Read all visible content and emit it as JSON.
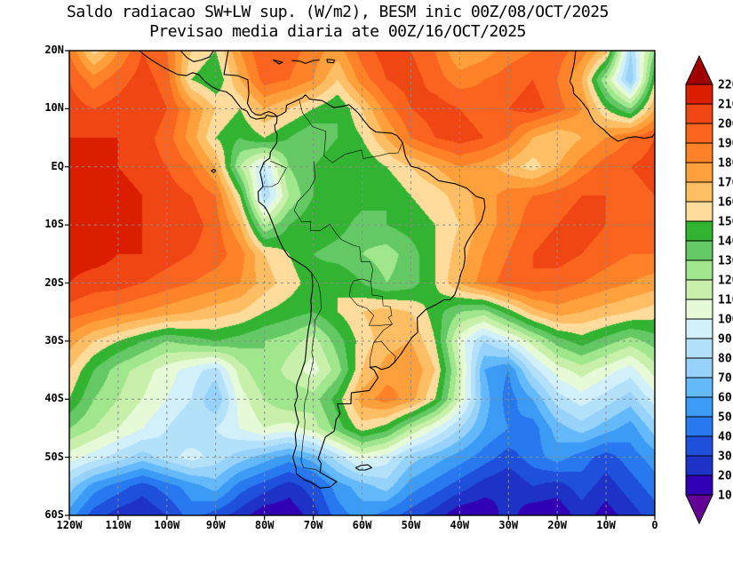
{
  "chart_data": {
    "type": "heatmap",
    "title": "Saldo radiacao SW+LW sup. (W/m2), BESM inic 00Z/08/OCT/2025",
    "subtitle": "Previsao media diaria ate 00Z/16/OCT/2025",
    "units": "W/m2",
    "x_ticks": [
      "120W",
      "110W",
      "100W",
      "90W",
      "80W",
      "70W",
      "60W",
      "50W",
      "40W",
      "30W",
      "20W",
      "10W",
      "0"
    ],
    "y_ticks": [
      "20N",
      "10N",
      "EQ",
      "10S",
      "20S",
      "30S",
      "40S",
      "50S",
      "60S"
    ],
    "lon_range": [
      -120,
      0
    ],
    "lat_range": [
      -60,
      20
    ],
    "grid_on": true,
    "legend_position": "right",
    "levels": [
      10,
      20,
      30,
      40,
      50,
      60,
      70,
      80,
      90,
      100,
      110,
      120,
      130,
      140,
      150,
      160,
      170,
      180,
      190,
      200,
      210,
      220
    ],
    "colorbar_labels": [
      "220",
      "210",
      "200",
      "190",
      "180",
      "170",
      "160",
      "150",
      "140",
      "130",
      "120",
      "110",
      "100",
      "90",
      "80",
      "70",
      "60",
      "50",
      "40",
      "30",
      "20",
      "10"
    ],
    "palette": [
      "#640096",
      "#3200b4",
      "#1e32c8",
      "#1e50dc",
      "#2878f0",
      "#3c9bf5",
      "#64b9fa",
      "#96d2fa",
      "#b4e1fa",
      "#d2f0fa",
      "#e6fad7",
      "#c8f0aa",
      "#a0e68c",
      "#64c864",
      "#32b432",
      "#ffdc9b",
      "#ffbe64",
      "#ffa03c",
      "#ff8228",
      "#fa641e",
      "#f04614",
      "#dc1e00",
      "#a00000"
    ],
    "grid_lons_deg_east": [
      -120,
      -115,
      -110,
      -105,
      -100,
      -95,
      -90,
      -85,
      -80,
      -75,
      -70,
      -65,
      -60,
      -55,
      -50,
      -45,
      -40,
      -35,
      -30,
      -25,
      -20,
      -15,
      -10,
      -5,
      0
    ],
    "grid_lats_deg_north": [
      20,
      15,
      10,
      5,
      0,
      -5,
      -10,
      -15,
      -20,
      -25,
      -30,
      -35,
      -40,
      -45,
      -50,
      -55,
      -60
    ],
    "values_w_m2": [
      [
        190,
        155,
        180,
        200,
        190,
        160,
        150,
        180,
        200,
        195,
        185,
        175,
        195,
        205,
        200,
        190,
        170,
        175,
        185,
        190,
        195,
        185,
        165,
        80,
        130
      ],
      [
        200,
        185,
        195,
        205,
        195,
        150,
        140,
        170,
        195,
        190,
        180,
        160,
        185,
        200,
        205,
        195,
        185,
        190,
        195,
        200,
        190,
        170,
        120,
        70,
        150
      ],
      [
        205,
        200,
        205,
        210,
        200,
        180,
        160,
        150,
        170,
        160,
        150,
        140,
        160,
        185,
        200,
        205,
        200,
        195,
        200,
        205,
        195,
        180,
        150,
        130,
        170
      ],
      [
        210,
        210,
        210,
        205,
        195,
        175,
        150,
        140,
        150,
        140,
        130,
        140,
        150,
        170,
        190,
        200,
        205,
        200,
        190,
        170,
        160,
        170,
        180,
        190,
        200
      ],
      [
        215,
        215,
        210,
        205,
        200,
        190,
        170,
        120,
        90,
        130,
        140,
        150,
        140,
        150,
        160,
        170,
        180,
        175,
        165,
        155,
        170,
        185,
        195,
        200,
        205
      ],
      [
        215,
        215,
        215,
        210,
        205,
        200,
        190,
        150,
        80,
        120,
        140,
        150,
        145,
        140,
        150,
        155,
        165,
        175,
        185,
        190,
        195,
        200,
        200,
        195,
        200
      ],
      [
        215,
        215,
        215,
        210,
        210,
        205,
        195,
        170,
        120,
        140,
        150,
        145,
        135,
        140,
        145,
        150,
        160,
        175,
        185,
        195,
        200,
        205,
        200,
        195,
        195
      ],
      [
        215,
        215,
        210,
        210,
        205,
        200,
        195,
        185,
        160,
        150,
        140,
        135,
        130,
        125,
        135,
        150,
        165,
        180,
        190,
        200,
        205,
        200,
        195,
        190,
        190
      ],
      [
        210,
        205,
        205,
        200,
        195,
        190,
        185,
        180,
        165,
        155,
        145,
        150,
        140,
        130,
        135,
        150,
        170,
        185,
        195,
        200,
        195,
        190,
        185,
        180,
        175
      ],
      [
        195,
        190,
        185,
        180,
        175,
        170,
        165,
        160,
        150,
        145,
        140,
        150,
        160,
        165,
        160,
        145,
        130,
        125,
        145,
        165,
        175,
        170,
        165,
        160,
        155
      ],
      [
        175,
        160,
        150,
        140,
        130,
        135,
        140,
        135,
        130,
        125,
        115,
        135,
        155,
        165,
        170,
        150,
        105,
        80,
        95,
        115,
        135,
        145,
        135,
        125,
        135
      ],
      [
        160,
        140,
        125,
        115,
        105,
        95,
        85,
        115,
        130,
        115,
        105,
        125,
        160,
        175,
        180,
        160,
        115,
        60,
        50,
        85,
        105,
        115,
        105,
        95,
        115
      ],
      [
        150,
        130,
        120,
        110,
        100,
        90,
        70,
        105,
        120,
        130,
        125,
        145,
        175,
        185,
        175,
        150,
        110,
        65,
        45,
        60,
        85,
        95,
        85,
        75,
        95
      ],
      [
        130,
        120,
        110,
        100,
        90,
        80,
        90,
        100,
        110,
        105,
        115,
        135,
        155,
        145,
        120,
        100,
        80,
        60,
        50,
        45,
        65,
        75,
        65,
        55,
        75
      ],
      [
        105,
        95,
        85,
        75,
        85,
        95,
        85,
        75,
        65,
        55,
        65,
        85,
        105,
        95,
        75,
        65,
        55,
        45,
        35,
        45,
        55,
        45,
        35,
        45,
        55
      ],
      [
        75,
        55,
        45,
        35,
        45,
        55,
        65,
        45,
        35,
        25,
        35,
        55,
        65,
        75,
        55,
        45,
        35,
        25,
        20,
        30,
        25,
        35,
        25,
        35,
        45
      ],
      [
        55,
        35,
        25,
        20,
        30,
        45,
        35,
        25,
        12,
        12,
        25,
        45,
        55,
        45,
        35,
        25,
        12,
        12,
        25,
        12,
        12,
        25,
        15,
        25,
        35
      ]
    ]
  }
}
